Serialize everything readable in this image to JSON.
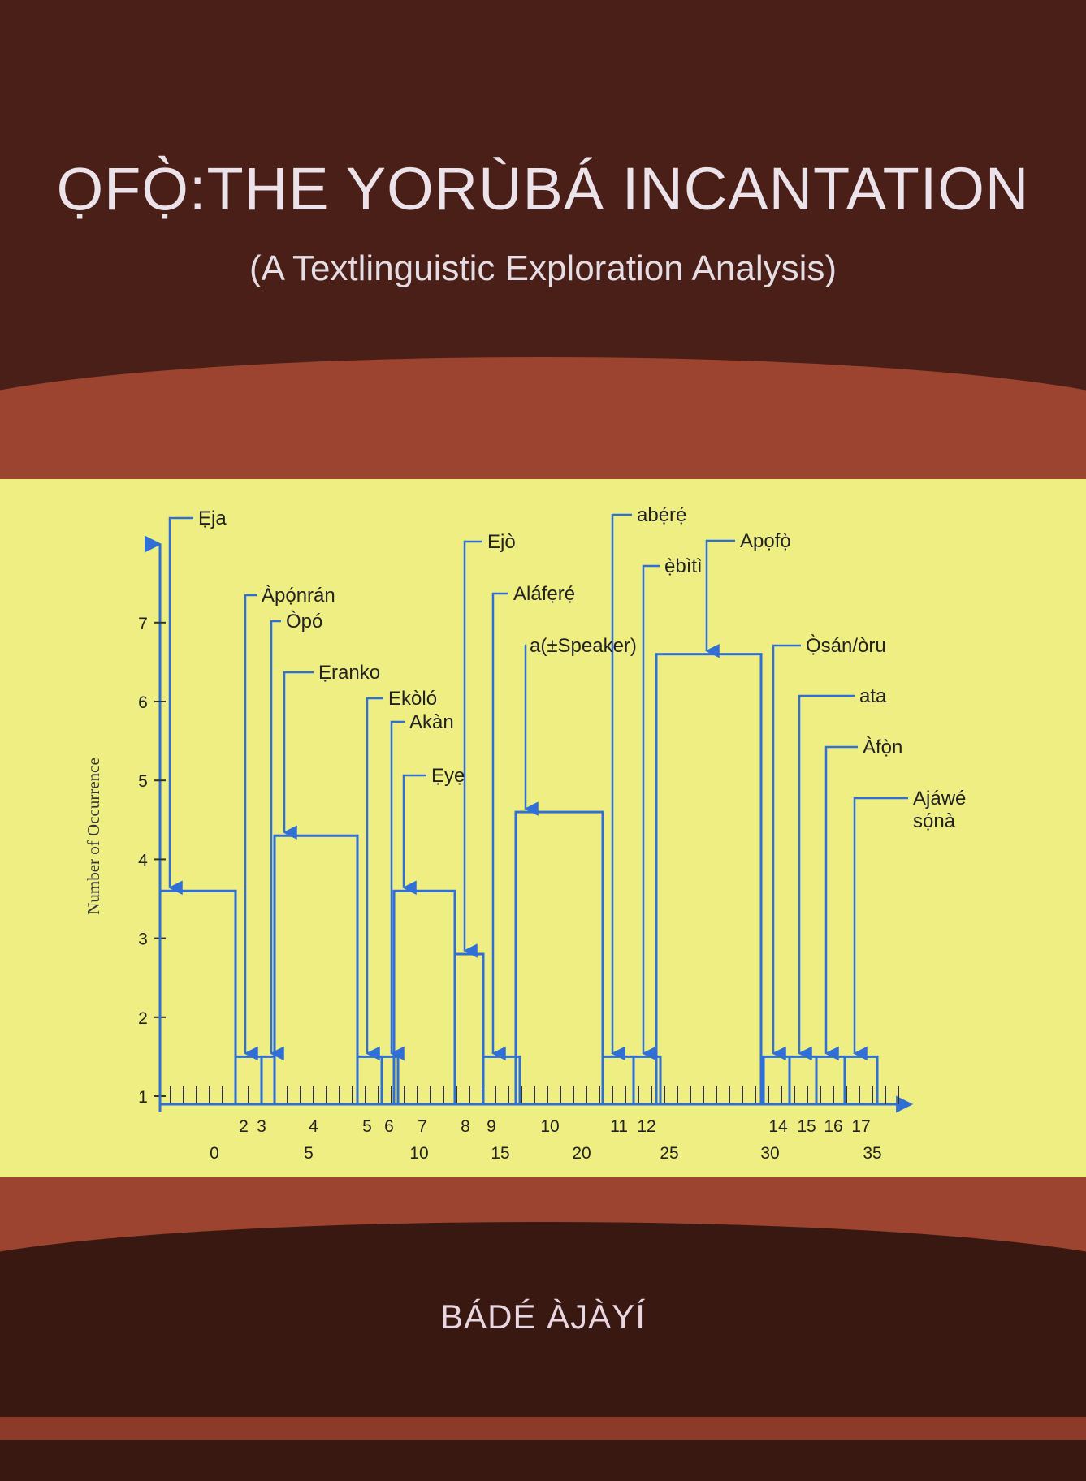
{
  "cover": {
    "title": "ỌFỌ̀:THE YORÙBÁ INCANTATION",
    "subtitle": "(A Textlinguistic Exploration Analysis)",
    "author": "BÁDÉ ÀJÀYÍ"
  },
  "chart_data": {
    "type": "bar",
    "ylabel": "Number of Occurrence",
    "yticks": [
      "1",
      "2",
      "3",
      "4",
      "5",
      "6",
      "7"
    ],
    "xticks_upper": [
      "2",
      "3",
      "4",
      "5",
      "6",
      "7",
      "8",
      "9",
      "10",
      "11",
      "12",
      "14",
      "15",
      "16",
      "17"
    ],
    "xticks_lower": [
      "0",
      "5",
      "10",
      "15",
      "20",
      "25",
      "30",
      "35"
    ],
    "bars": [
      {
        "label": "Ẹja",
        "value": 3.6
      },
      {
        "label": "Àpọ́nrán",
        "value": 1.5
      },
      {
        "label": "Òpó",
        "value": 1.5
      },
      {
        "label": "Ẹranko",
        "value": 4.3
      },
      {
        "label": "Ekòló",
        "value": 1.5
      },
      {
        "label": "Akàn",
        "value": 1.5
      },
      {
        "label": "Ẹyẹ",
        "value": 3.6
      },
      {
        "label": "Ejò",
        "value": 2.8
      },
      {
        "label": "Aláfẹrẹ́",
        "value": 1.5
      },
      {
        "label": "a(±Speaker)",
        "value": 4.6
      },
      {
        "label": "abẹ́rẹ́",
        "value": 1.5
      },
      {
        "label": "ẹ̀bìtì",
        "value": 1.5
      },
      {
        "label": "Apọfọ̀",
        "value": 6.6
      },
      {
        "label": "Ọ̀sán/òru",
        "value": 1.5
      },
      {
        "label": "ata",
        "value": 1.5
      },
      {
        "label": "Àfọ̀n",
        "value": 1.5
      },
      {
        "label": "Ajáwé sọ́nà",
        "value": 1.5
      }
    ],
    "colors": {
      "arrow": "#2f6fd6",
      "axis": "#2f6fd6"
    }
  }
}
